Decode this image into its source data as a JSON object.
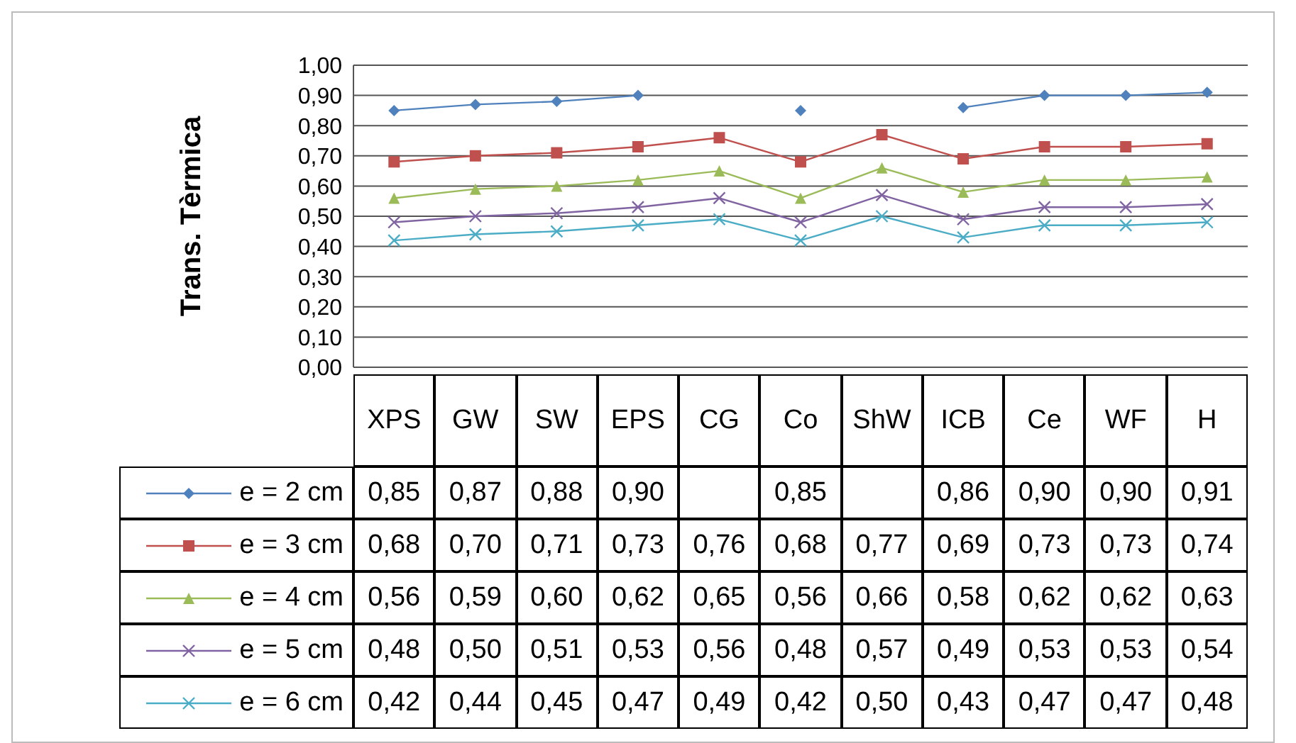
{
  "chart_data": {
    "type": "line",
    "ylabel": "Trans. Tèrmica",
    "categories": [
      "XPS",
      "GW",
      "SW",
      "EPS",
      "CG",
      "Co",
      "ShW",
      "ICB",
      "Ce",
      "WF",
      "H"
    ],
    "series": [
      {
        "name": "e = 2 cm",
        "color": "#4f81bd",
        "marker": "diamond",
        "values": [
          0.85,
          0.87,
          0.88,
          0.9,
          null,
          0.85,
          null,
          0.86,
          0.9,
          0.9,
          0.91
        ],
        "value_labels": [
          "0,85",
          "0,87",
          "0,88",
          "0,90",
          null,
          "0,85",
          null,
          "0,86",
          "0,90",
          "0,90",
          "0,91"
        ]
      },
      {
        "name": "e = 3 cm",
        "color": "#c0504d",
        "marker": "square",
        "values": [
          0.68,
          0.7,
          0.71,
          0.73,
          0.76,
          0.68,
          0.77,
          0.69,
          0.73,
          0.73,
          0.74
        ],
        "value_labels": [
          "0,68",
          "0,70",
          "0,71",
          "0,73",
          "0,76",
          "0,68",
          "0,77",
          "0,69",
          "0,73",
          "0,73",
          "0,74"
        ]
      },
      {
        "name": "e = 4 cm",
        "color": "#9bbb59",
        "marker": "triangle",
        "values": [
          0.56,
          0.59,
          0.6,
          0.62,
          0.65,
          0.56,
          0.66,
          0.58,
          0.62,
          0.62,
          0.63
        ],
        "value_labels": [
          "0,56",
          "0,59",
          "0,60",
          "0,62",
          "0,65",
          "0,56",
          "0,66",
          "0,58",
          "0,62",
          "0,62",
          "0,63"
        ]
      },
      {
        "name": "e = 5 cm",
        "color": "#8064a2",
        "marker": "cross",
        "values": [
          0.48,
          0.5,
          0.51,
          0.53,
          0.56,
          0.48,
          0.57,
          0.49,
          0.53,
          0.53,
          0.54
        ],
        "value_labels": [
          "0,48",
          "0,50",
          "0,51",
          "0,53",
          "0,56",
          "0,48",
          "0,57",
          "0,49",
          "0,53",
          "0,53",
          "0,54"
        ]
      },
      {
        "name": "e = 6 cm",
        "color": "#4bacc6",
        "marker": "cross",
        "values": [
          0.42,
          0.44,
          0.45,
          0.47,
          0.49,
          0.42,
          0.5,
          0.43,
          0.47,
          0.47,
          0.48
        ],
        "value_labels": [
          "0,42",
          "0,44",
          "0,45",
          "0,47",
          "0,49",
          "0,42",
          "0,50",
          "0,43",
          "0,47",
          "0,47",
          "0,48"
        ]
      }
    ],
    "ylim": [
      0,
      1
    ],
    "yticks": [
      {
        "value": 0,
        "label": "0,00"
      },
      {
        "value": 0.1,
        "label": "0,10"
      },
      {
        "value": 0.2,
        "label": "0,20"
      },
      {
        "value": 0.3,
        "label": "0,30"
      },
      {
        "value": 0.4,
        "label": "0,40"
      },
      {
        "value": 0.5,
        "label": "0,50"
      },
      {
        "value": 0.6,
        "label": "0,60"
      },
      {
        "value": 0.7,
        "label": "0,70"
      },
      {
        "value": 0.8,
        "label": "0,80"
      },
      {
        "value": 0.9,
        "label": "0,90"
      },
      {
        "value": 1,
        "label": "1,00"
      }
    ],
    "grid": "y",
    "legend": "bottom",
    "line_style": "solid"
  }
}
